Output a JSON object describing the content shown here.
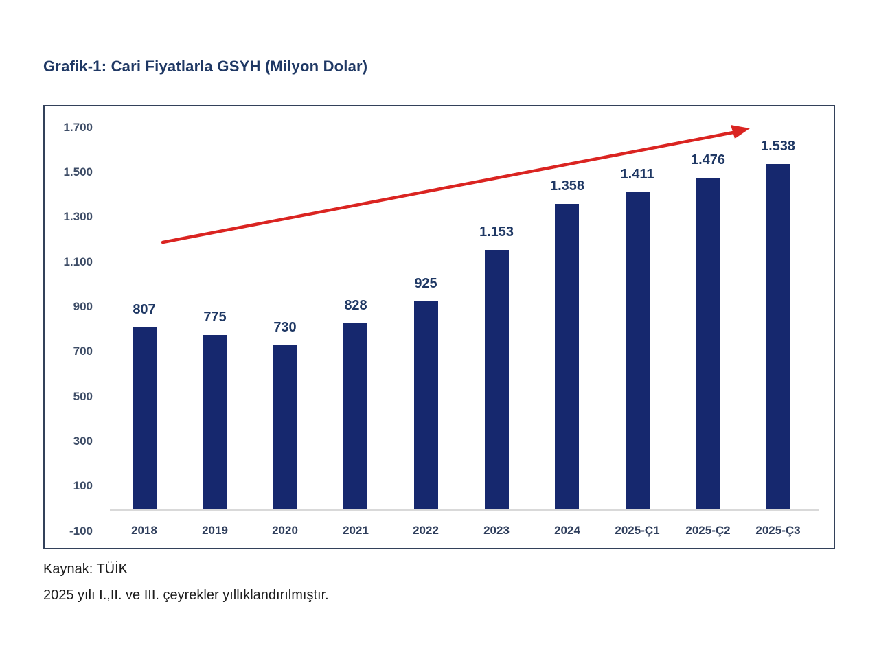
{
  "chart_data": {
    "type": "bar",
    "title": "Grafik-1: Cari Fiyatlarla GSYH (Milyon Dolar)",
    "categories": [
      "2018",
      "2019",
      "2020",
      "2021",
      "2022",
      "2023",
      "2024",
      "2025-Ç1",
      "2025-Ç2",
      "2025-Ç3"
    ],
    "values": [
      807,
      775,
      730,
      828,
      925,
      1153,
      1358,
      1411,
      1476,
      1538
    ],
    "value_labels": [
      "807",
      "775",
      "730",
      "828",
      "925",
      "1.153",
      "1.358",
      "1.411",
      "1.476",
      "1.538"
    ],
    "y_tick_labels": [
      "1.700",
      "1.500",
      "1.300",
      "1.100",
      "900",
      "700",
      "500",
      "300",
      "100",
      "-100"
    ],
    "y_tick_values": [
      1700,
      1500,
      1300,
      1100,
      900,
      700,
      500,
      300,
      100,
      -100
    ],
    "ylim": [
      -100,
      1700
    ],
    "grid": false,
    "legend": false,
    "annotation": "red upward trend arrow across bar tops",
    "bar_color": "#16286e",
    "value_label_color": "#1f3864",
    "title_color": "#1f3864",
    "axis_tick_color": "#3d4c66",
    "x_label_color": "#2f3e5c",
    "frame_border_color": "#33415a",
    "baseline_color": "#d9d9d9",
    "arrow_color": "#da2421"
  },
  "footer": {
    "source": "Kaynak: TÜİK",
    "note": "2025 yılı I.,II. ve III. çeyrekler yıllıklandırılmıştır."
  }
}
